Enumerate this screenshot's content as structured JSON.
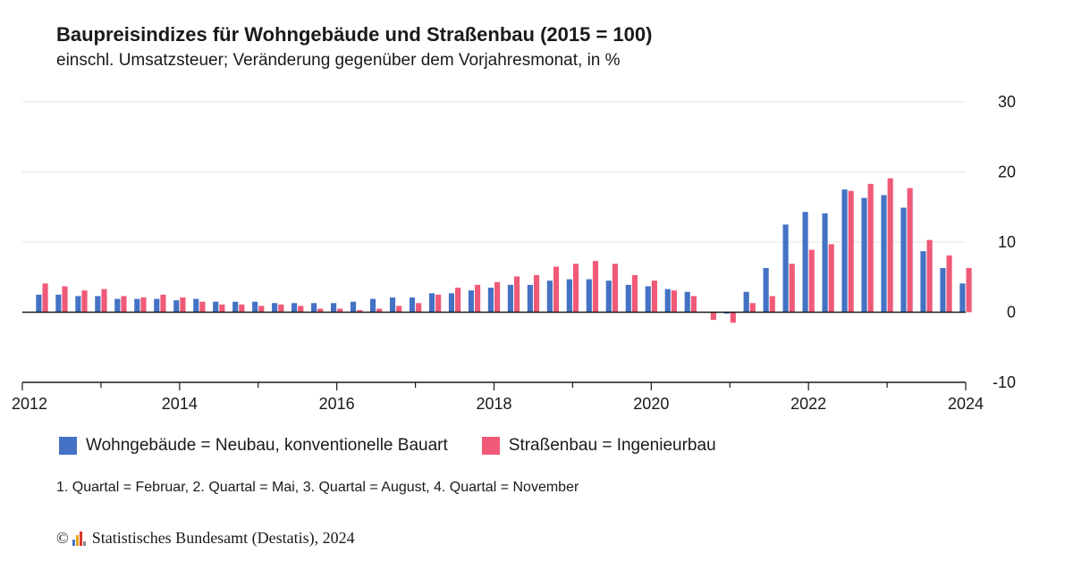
{
  "title": "Baupreisindizes für Wohngebäude und Straßenbau (2015 = 100)",
  "subtitle": "einschl. Umsatzsteuer; Veränderung gegenüber dem Vorjahresmonat, in %",
  "footnote": "1. Quartal = Februar, 2. Quartal = Mai, 3. Quartal = August, 4. Quartal = November",
  "source": {
    "copyright_symbol": "©",
    "text": "Statistisches Bundesamt (Destatis), 2024"
  },
  "colors": {
    "wohn": "#4472c4",
    "strasse": "#f05a78",
    "grid": "#e3e3e3",
    "axis": "#1a1a1a",
    "logo": [
      "#4472c4",
      "#e8a317",
      "#d9342b",
      "#888888"
    ]
  },
  "chart_data": {
    "type": "bar",
    "x_tick_labels": [
      "2012",
      "2014",
      "2016",
      "2018",
      "2020",
      "2022",
      "2024"
    ],
    "x_range": [
      2012,
      2024
    ],
    "x_step_per_quarter": 0.25,
    "x_start": 2012.25,
    "y_ticks": [
      30,
      20,
      10,
      0,
      -10
    ],
    "ylim": [
      -10,
      30
    ],
    "grid": true,
    "legend_position": "bottom",
    "series": [
      {
        "name": "Wohngebäude = Neubau, konventionelle Bauart",
        "color_key": "wohn",
        "values": [
          2.5,
          2.5,
          2.3,
          2.3,
          1.9,
          1.9,
          1.9,
          1.7,
          1.9,
          1.5,
          1.5,
          1.5,
          1.3,
          1.3,
          1.3,
          1.3,
          1.5,
          1.9,
          2.1,
          2.1,
          2.7,
          2.7,
          3.1,
          3.5,
          3.9,
          3.9,
          4.5,
          4.7,
          4.7,
          4.5,
          3.9,
          3.7,
          3.3,
          2.9,
          0.0,
          -0.2,
          2.9,
          6.3,
          12.5,
          14.3,
          14.1,
          17.5,
          16.3,
          16.7,
          14.9,
          8.7,
          6.3,
          4.1
        ]
      },
      {
        "name": "Straßenbau = Ingenieurbau",
        "color_key": "strasse",
        "values": [
          4.1,
          3.7,
          3.1,
          3.3,
          2.3,
          2.1,
          2.5,
          2.1,
          1.5,
          1.1,
          1.1,
          0.9,
          1.1,
          0.9,
          0.5,
          0.5,
          0.3,
          0.5,
          0.9,
          1.3,
          2.5,
          3.5,
          3.9,
          4.3,
          5.1,
          5.3,
          6.5,
          6.9,
          7.3,
          6.9,
          5.3,
          4.5,
          3.1,
          2.3,
          -1.1,
          -1.5,
          1.3,
          2.3,
          6.9,
          8.9,
          9.7,
          17.3,
          18.3,
          19.1,
          17.7,
          10.3,
          8.1,
          6.3
        ]
      }
    ]
  }
}
